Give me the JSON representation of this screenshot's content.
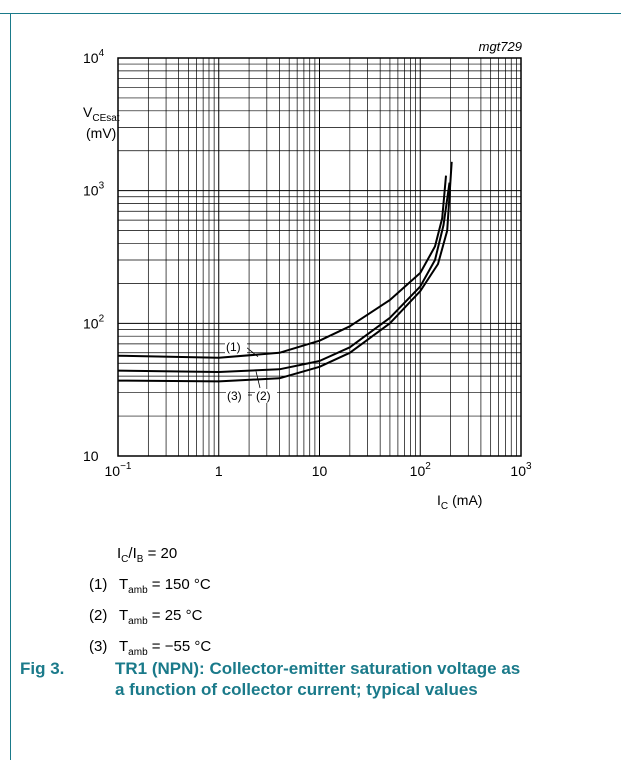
{
  "figure_id": "mgt729",
  "chart_data": {
    "type": "line",
    "x_scale": "log",
    "y_scale": "log",
    "xlim": [
      0.1,
      1000
    ],
    "ylim": [
      10,
      10000
    ],
    "xlabel": {
      "main": "I",
      "sub": "C",
      "unit": "(mA)"
    },
    "ylabel": {
      "main": "V",
      "sub": "CEsat",
      "unit": "(mV)"
    },
    "x_ticks": [
      {
        "base": "10",
        "exp": "−1",
        "value": 0.1
      },
      {
        "base": "1",
        "exp": "",
        "value": 1
      },
      {
        "base": "10",
        "exp": "",
        "value": 10
      },
      {
        "base": "10",
        "exp": "2",
        "value": 100
      },
      {
        "base": "10",
        "exp": "3",
        "value": 1000
      }
    ],
    "y_ticks": [
      {
        "base": "10",
        "exp": "",
        "value": 10
      },
      {
        "base": "10",
        "exp": "2",
        "value": 100
      },
      {
        "base": "10",
        "exp": "3",
        "value": 1000
      },
      {
        "base": "10",
        "exp": "4",
        "value": 10000
      }
    ],
    "grid": true,
    "series": [
      {
        "name": "(1)",
        "x": [
          0.1,
          1,
          4,
          10,
          20,
          50,
          100,
          140,
          165,
          180
        ],
        "y": [
          57,
          55,
          60,
          74,
          95,
          150,
          240,
          380,
          620,
          1300
        ]
      },
      {
        "name": "(2)",
        "x": [
          0.1,
          1,
          4,
          10,
          20,
          50,
          100,
          140,
          170,
          195
        ],
        "y": [
          44,
          43,
          45,
          52,
          66,
          110,
          190,
          300,
          550,
          1150
        ]
      },
      {
        "name": "(3)",
        "x": [
          0.1,
          1,
          4,
          10,
          20,
          50,
          100,
          150,
          185,
          205
        ],
        "y": [
          37,
          36.5,
          38.5,
          47,
          60,
          100,
          175,
          280,
          500,
          1650
        ]
      }
    ]
  },
  "conditions": {
    "ratio": {
      "a": "I",
      "a_sub": "C",
      "b": "/I",
      "b_sub": "B",
      "value": " = 20"
    },
    "items": [
      {
        "num": "(1)",
        "sym": "T",
        "sub": "amb",
        "value": " = 150 °C"
      },
      {
        "num": "(2)",
        "sym": "T",
        "sub": "amb",
        "value": " = 25 °C"
      },
      {
        "num": "(3)",
        "sym": "T",
        "sub": "amb",
        "value": " = −55 °C"
      }
    ]
  },
  "caption": {
    "label": "Fig 3.",
    "text": "TR1 (NPN): Collector-emitter saturation voltage as a function of collector current; typical values"
  },
  "colors": {
    "accent": "#1a7a8a",
    "curve": "#000000",
    "grid": "#000000"
  }
}
